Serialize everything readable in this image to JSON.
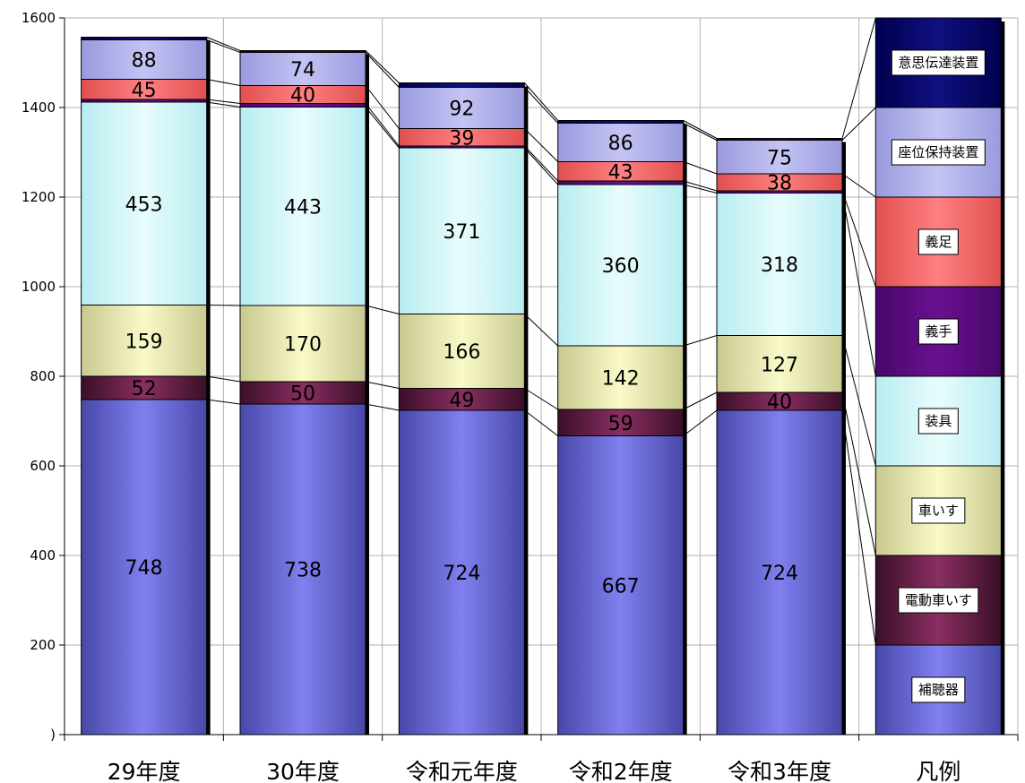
{
  "chart_data": {
    "type": "bar",
    "stacked": true,
    "categories": [
      "29年度",
      "30年度",
      "令和元年度",
      "令和2年度",
      "令和3年度"
    ],
    "legend_category_label": "凡例",
    "ylim": [
      0,
      1600
    ],
    "yticks": [
      ")",
      "200",
      "400",
      "600",
      "800",
      "1000",
      "1200",
      "1400",
      "1600"
    ],
    "grid": true,
    "series": [
      {
        "name": "補聴器",
        "values": [
          748,
          738,
          724,
          667,
          724
        ],
        "labels": [
          "748",
          "738",
          "724",
          "667",
          "724"
        ],
        "color": "#8080f0",
        "dark": "#4848a8"
      },
      {
        "name": "電動車いす",
        "values": [
          52,
          50,
          49,
          59,
          40
        ],
        "labels": [
          "52",
          "50",
          "49",
          "59",
          "40"
        ],
        "color": "#8a2f62",
        "dark": "#3a0f28"
      },
      {
        "name": "車いす",
        "values": [
          159,
          170,
          166,
          142,
          127
        ],
        "labels": [
          "159",
          "170",
          "166",
          "142",
          "127"
        ],
        "color": "#fafac8",
        "dark": "#c8c890"
      },
      {
        "name": "装具",
        "values": [
          453,
          443,
          371,
          360,
          318
        ],
        "labels": [
          "453",
          "443",
          "371",
          "360",
          "318"
        ],
        "color": "#e8fcfc",
        "dark": "#b8ecf0"
      },
      {
        "name": "義手",
        "values": [
          6,
          8,
          4,
          8,
          5
        ],
        "labels": [
          "",
          "",
          "",
          "",
          ""
        ],
        "color": "#6a1090",
        "dark": "#48086a"
      },
      {
        "name": "義足",
        "values": [
          45,
          40,
          39,
          43,
          38
        ],
        "labels": [
          "45",
          "40",
          "39",
          "43",
          "38"
        ],
        "color": "#ff8080",
        "dark": "#e05050"
      },
      {
        "name": "座位保持装置",
        "values": [
          88,
          74,
          92,
          86,
          75
        ],
        "labels": [
          "88",
          "74",
          "92",
          "86",
          "75"
        ],
        "color": "#c4c4f4",
        "dark": "#9a9ade"
      },
      {
        "name": "意思伝達装置",
        "values": [
          6,
          4,
          10,
          6,
          4
        ],
        "labels": [
          "",
          "",
          "",
          "",
          ""
        ],
        "color": "#101080",
        "dark": "#000050"
      }
    ]
  }
}
